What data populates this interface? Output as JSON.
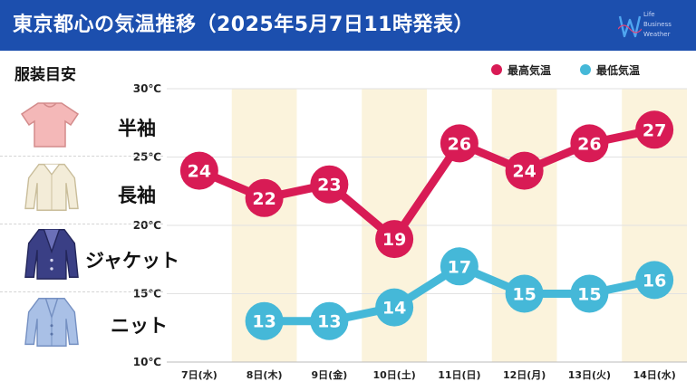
{
  "header": {
    "title": "東京都心の気温推移（2025年5月7日11時発表）",
    "brand": [
      "Life",
      "Business",
      "Weather"
    ]
  },
  "clothing_guide": {
    "heading": "服装目安",
    "items": [
      {
        "label": "半袖",
        "icon": "short-sleeve-shirt-icon",
        "color": "#f4b8b8"
      },
      {
        "label": "長袖",
        "icon": "long-sleeve-blouse-icon",
        "color": "#f3ecd8"
      },
      {
        "label": "ジャケット",
        "icon": "jacket-icon",
        "color": "#3a3f85"
      },
      {
        "label": "ニット",
        "icon": "knit-cardigan-icon",
        "color": "#a9c0e6"
      }
    ]
  },
  "colors": {
    "high": "#d81b55",
    "low": "#45b8d8",
    "header": "#1c4fae",
    "weekend_band": "#fbf3dc"
  },
  "chart_data": {
    "type": "line",
    "title": "",
    "xlabel": "",
    "ylabel": "",
    "categories": [
      "7日(水)",
      "8日(木)",
      "9日(金)",
      "10日(土)",
      "11日(日)",
      "12日(月)",
      "13日(火)",
      "14日(水)"
    ],
    "y_ticks": [
      "30℃",
      "25℃",
      "20℃",
      "15℃",
      "10℃"
    ],
    "ylim": [
      10,
      30
    ],
    "grid": true,
    "legend_position": "top-right",
    "series": [
      {
        "name": "最高気温",
        "values": [
          24,
          22,
          23,
          19,
          26,
          24,
          26,
          27
        ]
      },
      {
        "name": "最低気温",
        "values": [
          null,
          13,
          13,
          14,
          17,
          15,
          15,
          16
        ]
      }
    ]
  }
}
